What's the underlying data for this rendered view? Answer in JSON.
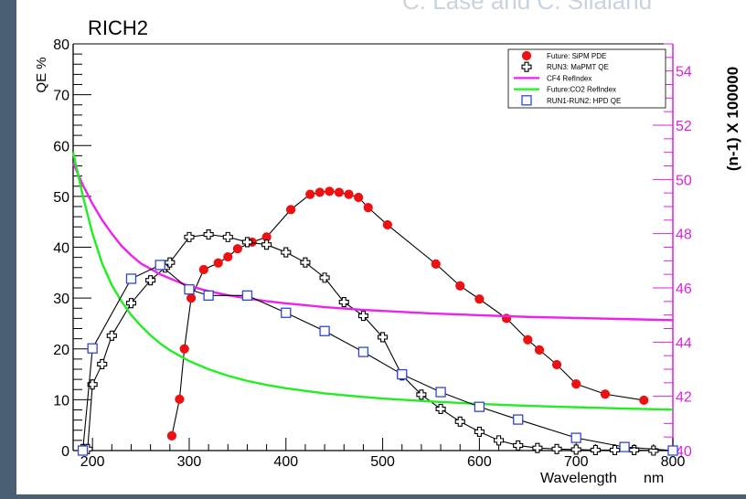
{
  "credit_text": "C. Lase and C. Silaland",
  "chart_data": {
    "type": "line",
    "title": "RICH2",
    "xlabel": "Wavelength",
    "xunit": "nm",
    "ylabel": "QE %",
    "y2label": "(n-1) X 100000",
    "xlim": [
      180,
      800
    ],
    "ylim": [
      0,
      80
    ],
    "y2lim": [
      40,
      55
    ],
    "xticks": [
      200,
      300,
      400,
      500,
      600,
      700,
      800
    ],
    "yticks": [
      0,
      10,
      20,
      30,
      40,
      50,
      60,
      70,
      80
    ],
    "y2ticks": [
      40,
      42,
      44,
      46,
      48,
      50,
      52,
      54
    ],
    "legend_position": "top-right",
    "grid": false,
    "colors": {
      "sipm": "#ee1111",
      "mapmt": "#000000",
      "cf4": "#ee22ee",
      "co2": "#22ee22",
      "hpd": "#3344dd",
      "right_axis": "#dd22dd",
      "line": "#000000"
    },
    "series": [
      {
        "name": "Future: SiPM PDE",
        "key": "sipm",
        "marker": "filled-circle",
        "axis": "left",
        "x": [
          282,
          290,
          295,
          302,
          315,
          330,
          340,
          350,
          365,
          380,
          405,
          425,
          435,
          445,
          455,
          465,
          475,
          485,
          505,
          555,
          580,
          600,
          628,
          650,
          662,
          680,
          700,
          730,
          770
        ],
        "y": [
          2.9,
          10.1,
          20.0,
          30.0,
          35.6,
          36.9,
          38.1,
          39.7,
          41.0,
          42.0,
          47.4,
          50.4,
          50.8,
          51.0,
          50.8,
          50.4,
          49.8,
          47.8,
          44.4,
          36.7,
          32.4,
          29.8,
          26.0,
          21.8,
          19.8,
          16.9,
          13.1,
          11.1,
          9.9
        ]
      },
      {
        "name": "RUN3: MaPMT QE",
        "key": "mapmt",
        "marker": "open-cross",
        "axis": "left",
        "x": [
          190,
          195,
          200,
          210,
          220,
          240,
          260,
          275,
          280,
          300,
          320,
          340,
          360,
          380,
          400,
          420,
          440,
          460,
          480,
          500,
          520,
          540,
          560,
          580,
          600,
          620,
          640,
          660,
          680,
          700,
          720,
          740,
          760,
          780,
          800
        ],
        "y": [
          0.3,
          0.3,
          13.0,
          17.0,
          22.6,
          29.0,
          33.5,
          36.0,
          37.0,
          42.0,
          42.5,
          42.0,
          41.0,
          40.5,
          39.0,
          37.0,
          34.0,
          29.2,
          26.5,
          22.3,
          14.8,
          11.0,
          8.2,
          5.7,
          3.7,
          2.0,
          1.0,
          0.5,
          0.3,
          0.2,
          0.1,
          0.1,
          0.1,
          0.0,
          0.0
        ]
      },
      {
        "name": "CF4 RefIndex",
        "key": "cf4",
        "marker": "none",
        "axis": "right",
        "x": [
          180,
          190,
          200,
          210,
          220,
          230,
          240,
          250,
          260,
          270,
          280,
          290,
          300,
          320,
          340,
          360,
          380,
          400,
          420,
          440,
          460,
          480,
          500,
          550,
          600,
          650,
          700,
          750,
          800
        ],
        "y": [
          50.6,
          49.8,
          49.1,
          48.5,
          48.0,
          47.55,
          47.2,
          46.9,
          46.7,
          46.5,
          46.35,
          46.2,
          46.07,
          45.88,
          45.73,
          45.61,
          45.51,
          45.43,
          45.36,
          45.29,
          45.24,
          45.19,
          45.15,
          45.06,
          44.99,
          44.93,
          44.89,
          44.85,
          44.81
        ]
      },
      {
        "name": "Future:CO2  RefIndex",
        "key": "co2",
        "marker": "none",
        "axis": "right",
        "x": [
          180,
          190,
          200,
          210,
          220,
          230,
          240,
          250,
          260,
          270,
          280,
          290,
          300,
          320,
          340,
          360,
          380,
          400,
          420,
          440,
          460,
          480,
          500,
          550,
          600,
          650,
          700,
          750,
          800
        ],
        "y": [
          51.0,
          49.4,
          48.0,
          46.9,
          46.1,
          45.5,
          45.0,
          44.6,
          44.25,
          43.95,
          43.7,
          43.5,
          43.3,
          43.0,
          42.76,
          42.57,
          42.42,
          42.3,
          42.2,
          42.11,
          42.04,
          41.98,
          41.92,
          41.81,
          41.72,
          41.65,
          41.6,
          41.55,
          41.51
        ]
      },
      {
        "name": "RUN1-RUN2:  HPD QE",
        "key": "hpd",
        "marker": "open-square",
        "axis": "left",
        "x": [
          190,
          200,
          240,
          270,
          300,
          320,
          360,
          400,
          440,
          480,
          520,
          560,
          600,
          640,
          700,
          750,
          800
        ],
        "y": [
          0.0,
          20.1,
          33.8,
          36.5,
          31.7,
          30.5,
          30.5,
          27.1,
          23.5,
          19.4,
          15.0,
          11.5,
          8.6,
          6.1,
          2.5,
          0.7,
          0.0
        ]
      }
    ]
  }
}
